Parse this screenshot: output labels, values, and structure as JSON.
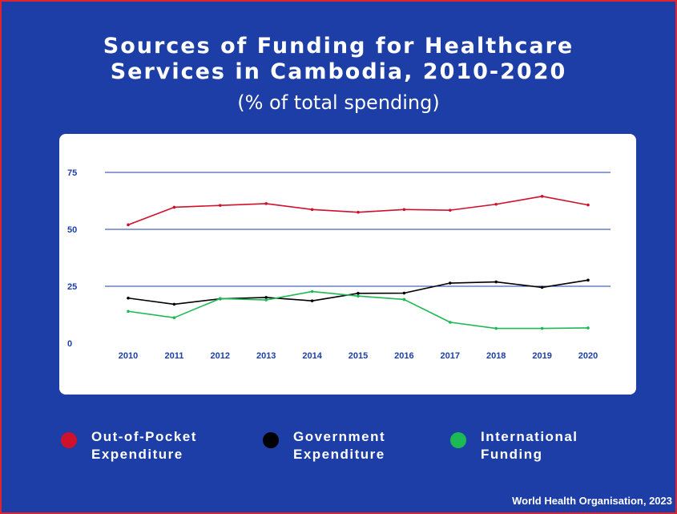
{
  "title_line1": "Sources of Funding for Healthcare",
  "title_line2": "Services in Cambodia, 2010-2020",
  "subtitle": "(% of total spending)",
  "source": "World Health Organisation, 2023",
  "legend": [
    {
      "label_line1": "Out-of-Pocket",
      "label_line2": "Expenditure",
      "color": "#d0112b"
    },
    {
      "label_line1": "Government",
      "label_line2": "Expenditure",
      "color": "#000000"
    },
    {
      "label_line1": "International",
      "label_line2": "Funding",
      "color": "#1db954"
    }
  ],
  "colors": {
    "background": "#1c3ea6",
    "border": "#e0242f",
    "gridline": "#1c3ea6"
  },
  "chart_data": {
    "type": "line",
    "title": "Sources of Funding for Healthcare Services in Cambodia, 2010-2020",
    "subtitle": "(% of total spending)",
    "x": [
      2010,
      2011,
      2012,
      2013,
      2014,
      2015,
      2016,
      2017,
      2018,
      2019,
      2020
    ],
    "y_ticks": [
      0,
      25,
      50,
      75
    ],
    "ylim": [
      0,
      75
    ],
    "grid": true,
    "legend_position": "bottom",
    "series": [
      {
        "name": "Out-of-Pocket Expenditure",
        "color": "#d0112b",
        "values": [
          52,
          59.7,
          60.5,
          61.3,
          58.7,
          57.5,
          58.7,
          58.4,
          61,
          64.5,
          60.7
        ]
      },
      {
        "name": "Government Expenditure",
        "color": "#000000",
        "values": [
          19.8,
          17.1,
          19.5,
          20.1,
          18.6,
          21.9,
          22,
          26.4,
          26.9,
          24.5,
          27.7
        ]
      },
      {
        "name": "International Funding",
        "color": "#1db954",
        "values": [
          14,
          11.2,
          19.6,
          19,
          22.7,
          20.7,
          19.2,
          9.2,
          6.5,
          6.5,
          6.7
        ]
      }
    ]
  }
}
